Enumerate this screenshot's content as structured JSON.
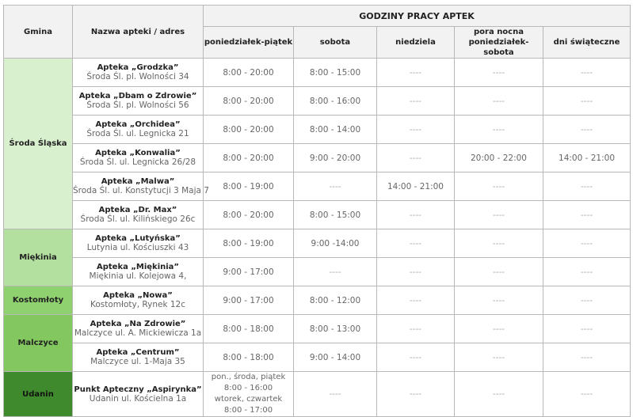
{
  "header": {
    "gmina": "Gmina",
    "nazwa": "Nazwa apteki / adres",
    "group": "GODZINY PRACY APTEK",
    "cols": [
      "poniedziałek-piątek",
      "sobota",
      "niedziela",
      "pora nocna\nponiedziałek-sobota",
      "dni świąteczne"
    ]
  },
  "colors": {
    "header_bg": "#f2f2f2",
    "Środa Śląska": "#d9f0cf",
    "Miękinia": "#b3e09e",
    "Kostomłoty": "#8fd06f",
    "Malczyce": "#82c85e",
    "Udanin": "#3e8a2c"
  },
  "groups": [
    {
      "gmina": "Środa Śląska",
      "color": "#d9f0cf",
      "rows": [
        {
          "name": "Apteka „Grodzka”",
          "address": "Środa Śl. pl. Wolności 34",
          "hours": [
            "8:00 - 20:00",
            "8:00 - 15:00",
            "----",
            "----",
            "----"
          ]
        },
        {
          "name": "Apteka „Dbam o Zdrowie”",
          "address": "Środa Śl. pl. Wolności 56",
          "hours": [
            "8:00 - 20:00",
            "8:00 - 16:00",
            "----",
            "----",
            "----"
          ]
        },
        {
          "name": "Apteka „Orchidea”",
          "address": "Środa Śl. ul. Legnicka 21",
          "hours": [
            "8:00 - 20:00",
            "8:00 - 14:00",
            "----",
            "----",
            "----"
          ]
        },
        {
          "name": "Apteka „Konwalia”",
          "address": "Środa Śl. ul. Legnicka 26/28",
          "hours": [
            "8:00 - 20:00",
            "9:00 - 20:00",
            "----",
            "20:00 - 22:00",
            "14:00 - 21:00"
          ]
        },
        {
          "name": "Apteka „Malwa”",
          "address": "Środa Śl. ul. Konstytucji 3 Maja 7",
          "hours": [
            "8:00 - 19:00",
            "----",
            "14:00 - 21:00",
            "----",
            "----"
          ]
        },
        {
          "name": "Apteka „Dr. Max”",
          "address": "Środa Śl. ul. Kilińskiego 26c",
          "hours": [
            "8:00 - 20:00",
            "8:00 - 15:00",
            "----",
            "----",
            "----"
          ]
        }
      ]
    },
    {
      "gmina": "Miękinia",
      "color": "#b3e09e",
      "rows": [
        {
          "name": "Apteka „Lutyńska”",
          "address": "Lutynia ul. Kościuszki 43",
          "hours": [
            "8:00 - 19:00",
            "9:00 -14:00",
            "----",
            "----",
            "----"
          ]
        },
        {
          "name": "Apteka „Miękinia”",
          "address": "Miękinia ul. Kolejowa 4,",
          "hours": [
            "9:00 - 17:00",
            "----",
            "----",
            "----",
            "----"
          ]
        }
      ]
    },
    {
      "gmina": "Kostomłoty",
      "color": "#8fd06f",
      "rows": [
        {
          "name": "Apteka „Nowa”",
          "address": "Kostomłoty, Rynek 12c",
          "hours": [
            "9:00 - 17:00",
            "8:00 - 12:00",
            "----",
            "----",
            "----"
          ]
        }
      ]
    },
    {
      "gmina": "Malczyce",
      "color": "#82c85e",
      "rows": [
        {
          "name": "Apteka „Na Zdrowie”",
          "address": "Malczyce ul. A. Mickiewicza 1a",
          "hours": [
            "8:00 - 18:00",
            "8:00 - 13:00",
            "----",
            "----",
            "----"
          ]
        },
        {
          "name": "Apteka „Centrum”",
          "address": "Malczyce ul. 1-Maja 35",
          "hours": [
            "8:00 -  18:00",
            "9:00 - 14:00",
            "----",
            "----",
            "----"
          ]
        }
      ]
    },
    {
      "gmina": "Udanin",
      "color": "#3e8a2c",
      "rows": [
        {
          "name": "Punkt Apteczny „Aspirynka”",
          "address": "Udanin ul. Kościelna 1a",
          "hours": [
            "pon., środa, piątek\n8:00 - 16:00\nwtorek, czwartek\n8:00 - 17:00",
            "----",
            "----",
            "----",
            "----"
          ]
        }
      ]
    }
  ]
}
